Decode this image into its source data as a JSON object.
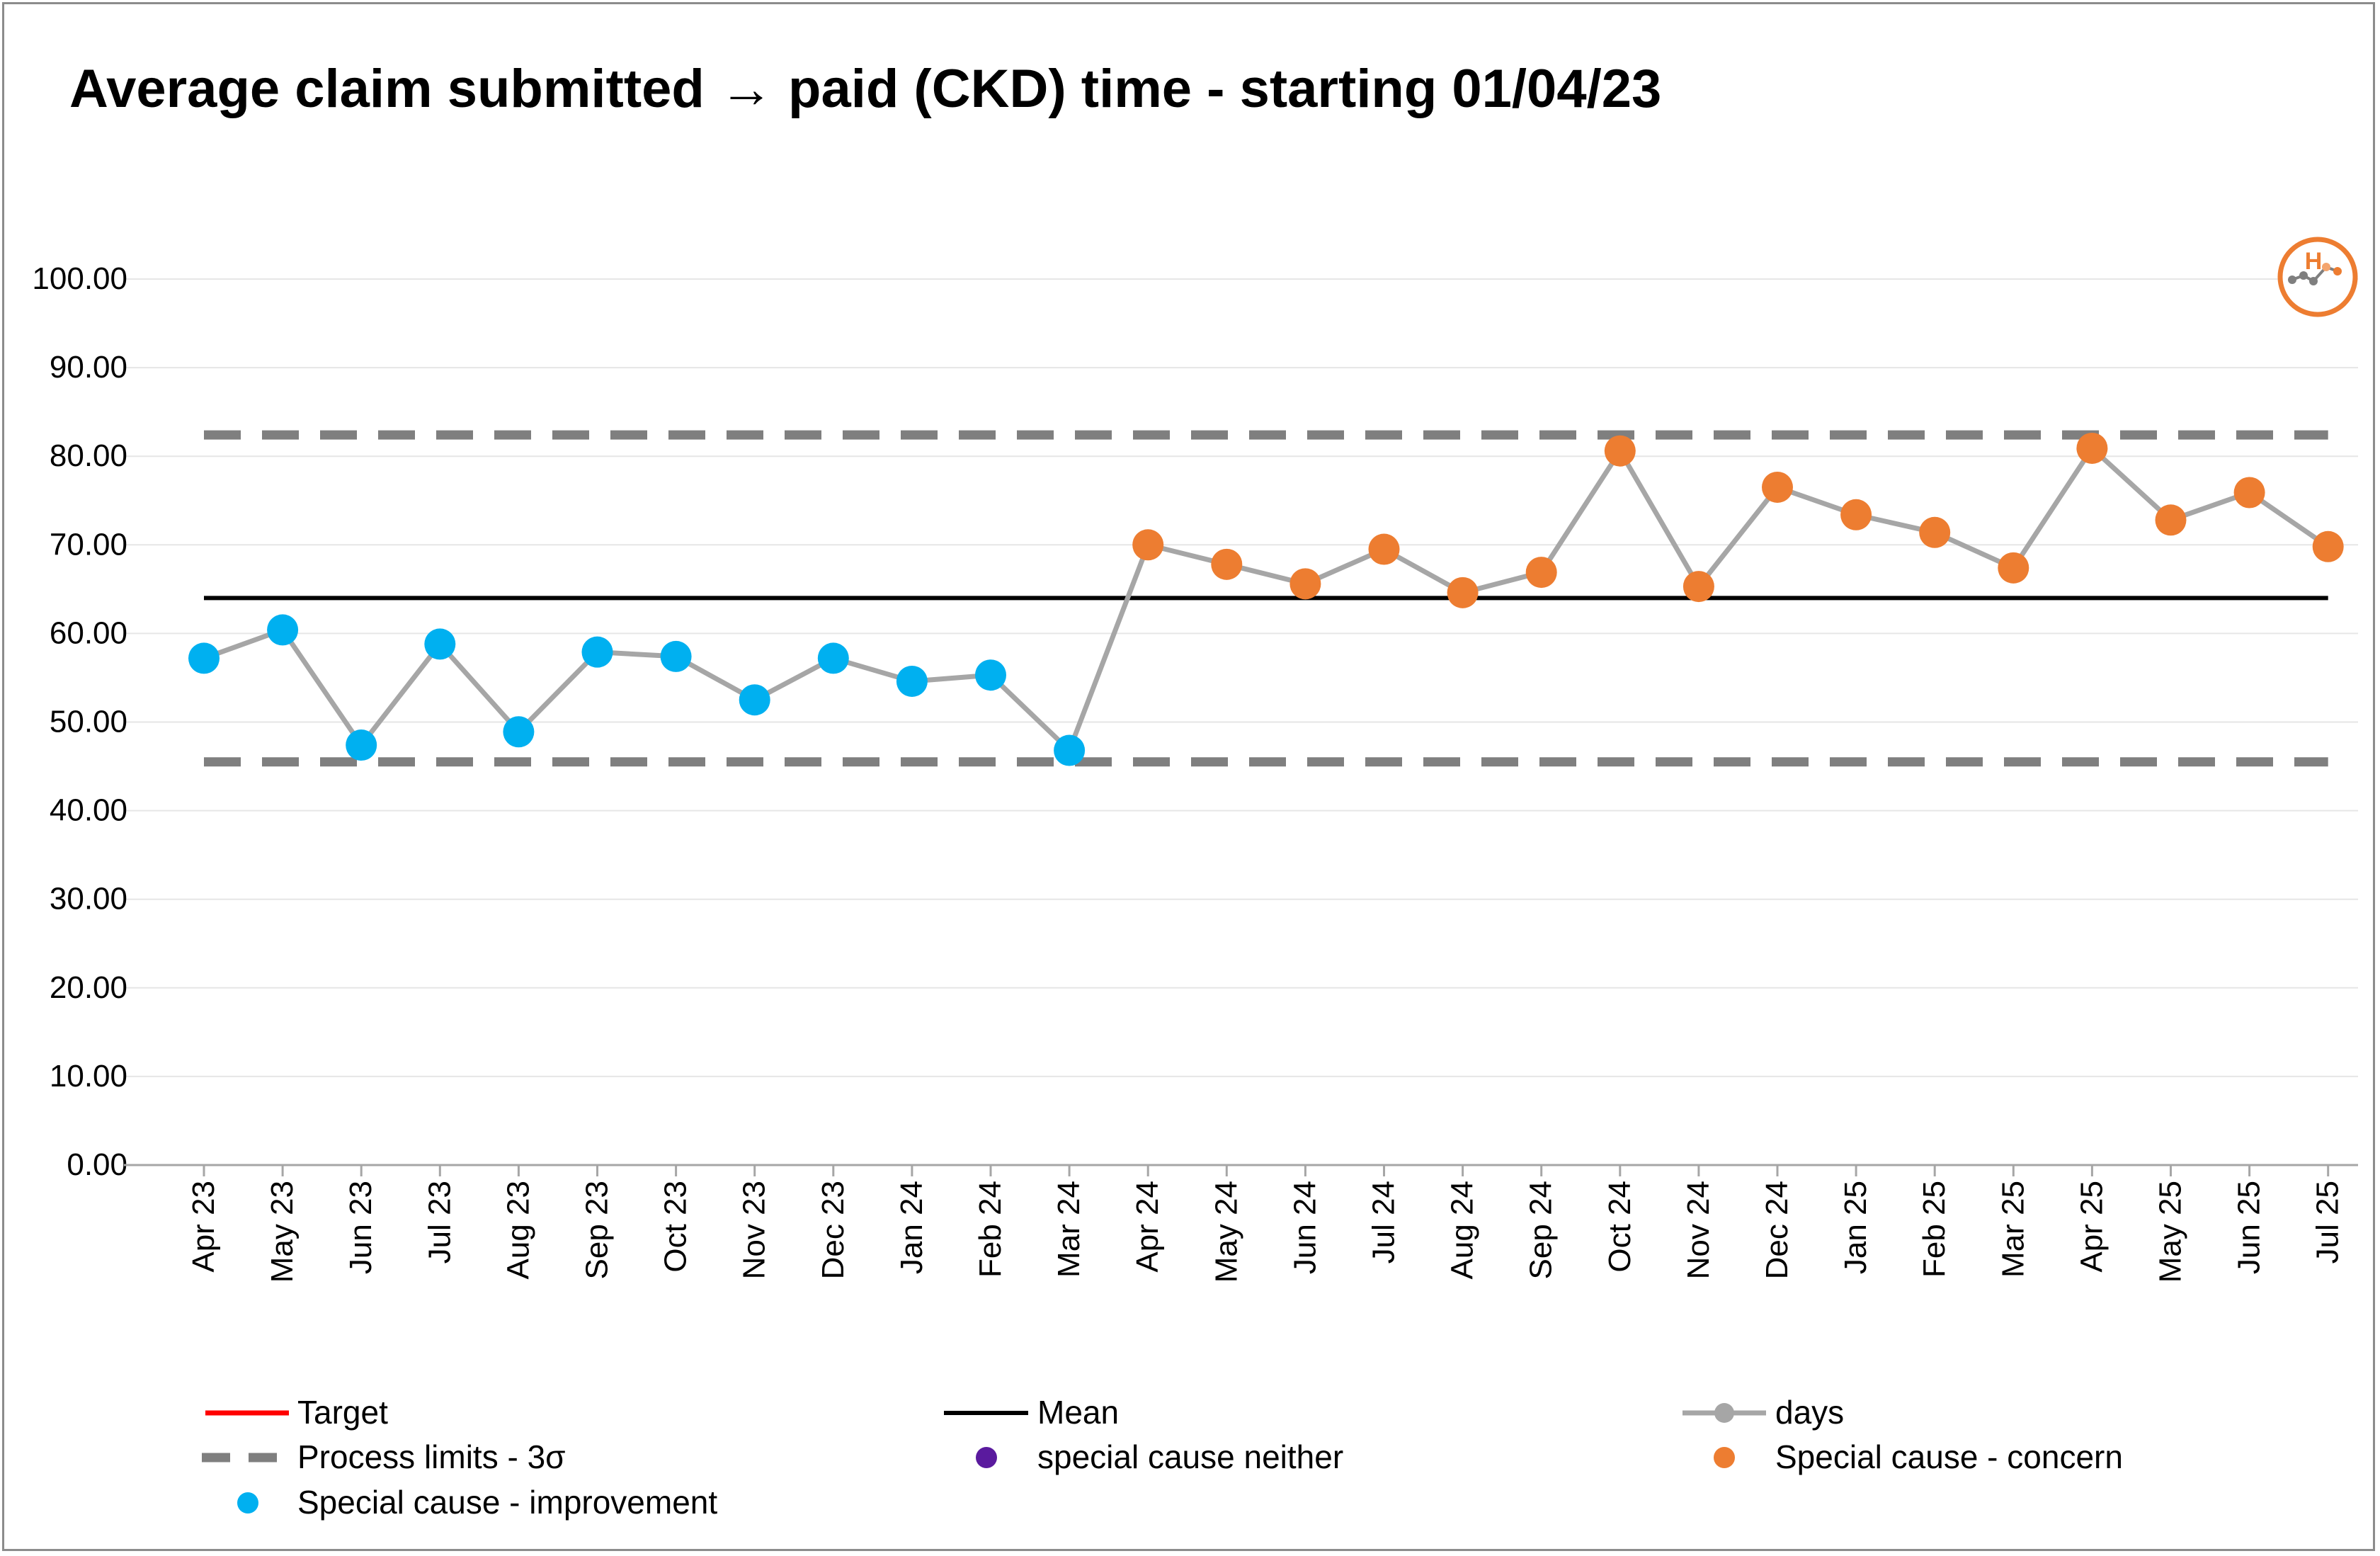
{
  "chart_data": {
    "type": "line",
    "title": "Average claim submitted → paid (CKD) time - starting 01/04/23",
    "xlabel": "",
    "ylabel": "",
    "ylim": [
      0,
      100
    ],
    "y_ticks": [
      "0.00",
      "10.00",
      "20.00",
      "30.00",
      "40.00",
      "50.00",
      "60.00",
      "70.00",
      "80.00",
      "90.00",
      "100.00"
    ],
    "categories": [
      "Apr 23",
      "May 23",
      "Jun 23",
      "Jul 23",
      "Aug 23",
      "Sep 23",
      "Oct 23",
      "Nov 23",
      "Dec 23",
      "Jan 24",
      "Feb 24",
      "Mar 24",
      "Apr 24",
      "May 24",
      "Jun 24",
      "Jul 24",
      "Aug 24",
      "Sep 24",
      "Oct 24",
      "Nov 24",
      "Dec 24",
      "Jan 25",
      "Feb 25",
      "Mar 25",
      "Apr 25",
      "May 25",
      "Jun 25",
      "Jul 25"
    ],
    "series": [
      {
        "name": "days",
        "values": [
          57.2,
          60.4,
          47.4,
          58.8,
          48.9,
          57.9,
          57.4,
          52.5,
          57.2,
          54.6,
          55.3,
          46.8,
          70.0,
          67.8,
          65.6,
          69.5,
          64.6,
          66.9,
          80.6,
          65.3,
          76.5,
          73.4,
          71.4,
          67.4,
          80.9,
          72.8,
          75.9,
          69.8
        ],
        "special_cause": [
          "improvement",
          "improvement",
          "improvement",
          "improvement",
          "improvement",
          "improvement",
          "improvement",
          "improvement",
          "improvement",
          "improvement",
          "improvement",
          "improvement",
          "concern",
          "concern",
          "concern",
          "concern",
          "concern",
          "concern",
          "concern",
          "concern",
          "concern",
          "concern",
          "concern",
          "concern",
          "concern",
          "concern",
          "concern",
          "concern"
        ]
      }
    ],
    "mean": 64.0,
    "upper_process_limit": 82.4,
    "lower_process_limit": 45.5,
    "legend_placement": "bottom",
    "legend": {
      "target": "Target",
      "mean": "Mean",
      "days": "days",
      "process_limits": "Process limits - 3σ",
      "neither": "special cause neither",
      "concern": "Special cause - concern",
      "improvement": "Special cause  - improvement"
    },
    "colors": {
      "line": "#a6a6a6",
      "mean": "#000000",
      "limits": "#7f7f7f",
      "target": "#ff0000",
      "improvement": "#00b0f0",
      "concern": "#ed7d31",
      "neither": "#5a1a9e",
      "grid": "#e6e6e6",
      "axis": "#a6a6a6"
    },
    "grid": true,
    "logo": {
      "letter": "H",
      "color": "#ed7d31"
    }
  }
}
